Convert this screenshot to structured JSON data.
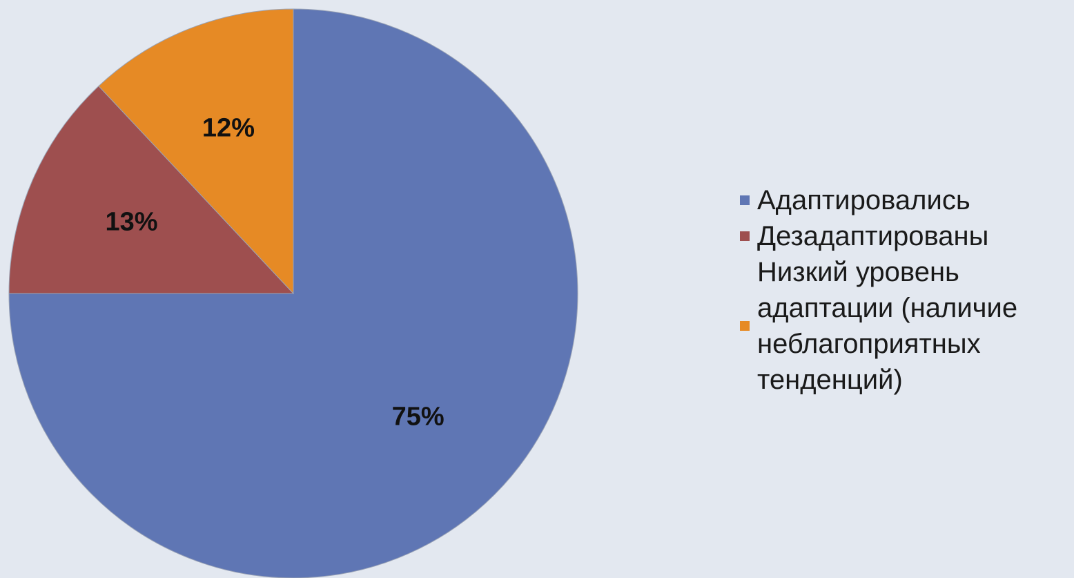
{
  "chart_data": {
    "type": "pie",
    "title": "",
    "start_angle_deg": 0,
    "direction": "clockwise",
    "legend_position": "right",
    "slices": [
      {
        "label": "Адаптировались",
        "value": 75,
        "value_label": "75%",
        "color": "#5f76b4"
      },
      {
        "label": "Дезадаптированы",
        "value": 13,
        "value_label": "13%",
        "color": "#9e4f4f"
      },
      {
        "label": "Низкий уровень\nадаптации (наличие\nнеблагоприятных\nтенденций)",
        "value": 12,
        "value_label": "12%",
        "color": "#e68a25"
      }
    ]
  }
}
